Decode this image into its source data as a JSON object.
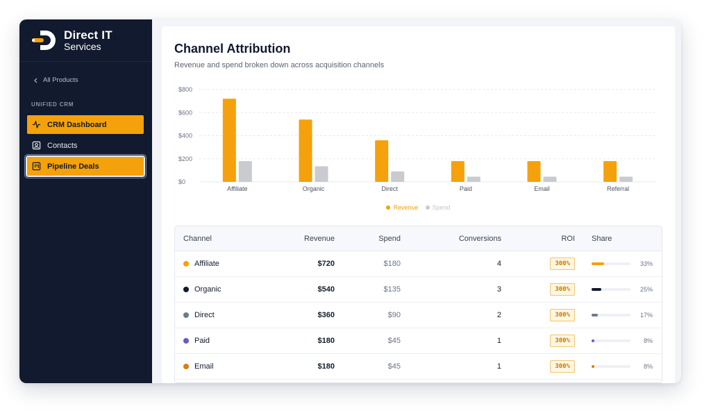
{
  "brand": {
    "name_line1": "Direct IT",
    "name_line2": "Services",
    "accent": "#f4a10b",
    "sidebar_bg": "#111a2e"
  },
  "sidebar": {
    "back_label": "All Products",
    "section_label": "UNIFIED CRM",
    "items": [
      {
        "label": "CRM Dashboard",
        "icon": "activity-icon",
        "state": "active"
      },
      {
        "label": "Contacts",
        "icon": "contact-card-icon",
        "state": "normal"
      },
      {
        "label": "Pipeline Deals",
        "icon": "kanban-icon",
        "state": "selected"
      }
    ]
  },
  "header": {
    "title": "Channel Attribution",
    "subtitle": "Revenue and spend broken down across acquisition channels"
  },
  "chart_data": {
    "type": "bar",
    "categories": [
      "Affiliate",
      "Organic",
      "Direct",
      "Paid",
      "Email",
      "Referral"
    ],
    "series": [
      {
        "name": "Revenue",
        "values": [
          720,
          540,
          360,
          180,
          180,
          180
        ],
        "color": "#f4a10b"
      },
      {
        "name": "Spend",
        "values": [
          180,
          135,
          90,
          45,
          45,
          45
        ],
        "color": "#c9cbd1"
      }
    ],
    "yticks": [
      "$0",
      "$200",
      "$400",
      "$600",
      "$800"
    ],
    "ylim": [
      0,
      800
    ],
    "grid": true,
    "legend": "bottom-center"
  },
  "table": {
    "columns": [
      "Channel",
      "Revenue",
      "Spend",
      "Conversions",
      "ROI",
      "Share"
    ],
    "rows": [
      {
        "channel": "Affiliate",
        "color": "#f4a10b",
        "revenue": "$720",
        "spend": "$180",
        "conversions": "4",
        "roi": "300%",
        "share": 0.33,
        "share_label": "33%"
      },
      {
        "channel": "Organic",
        "color": "#111a2e",
        "revenue": "$540",
        "spend": "$135",
        "conversions": "3",
        "roi": "300%",
        "share": 0.25,
        "share_label": "25%"
      },
      {
        "channel": "Direct",
        "color": "#6b7c8c",
        "revenue": "$360",
        "spend": "$90",
        "conversions": "2",
        "roi": "300%",
        "share": 0.17,
        "share_label": "17%"
      },
      {
        "channel": "Paid",
        "color": "#6a5bbf",
        "revenue": "$180",
        "spend": "$45",
        "conversions": "1",
        "roi": "300%",
        "share": 0.08,
        "share_label": "8%"
      },
      {
        "channel": "Email",
        "color": "#d4820f",
        "revenue": "$180",
        "spend": "$45",
        "conversions": "1",
        "roi": "300%",
        "share": 0.08,
        "share_label": "8%"
      }
    ]
  }
}
